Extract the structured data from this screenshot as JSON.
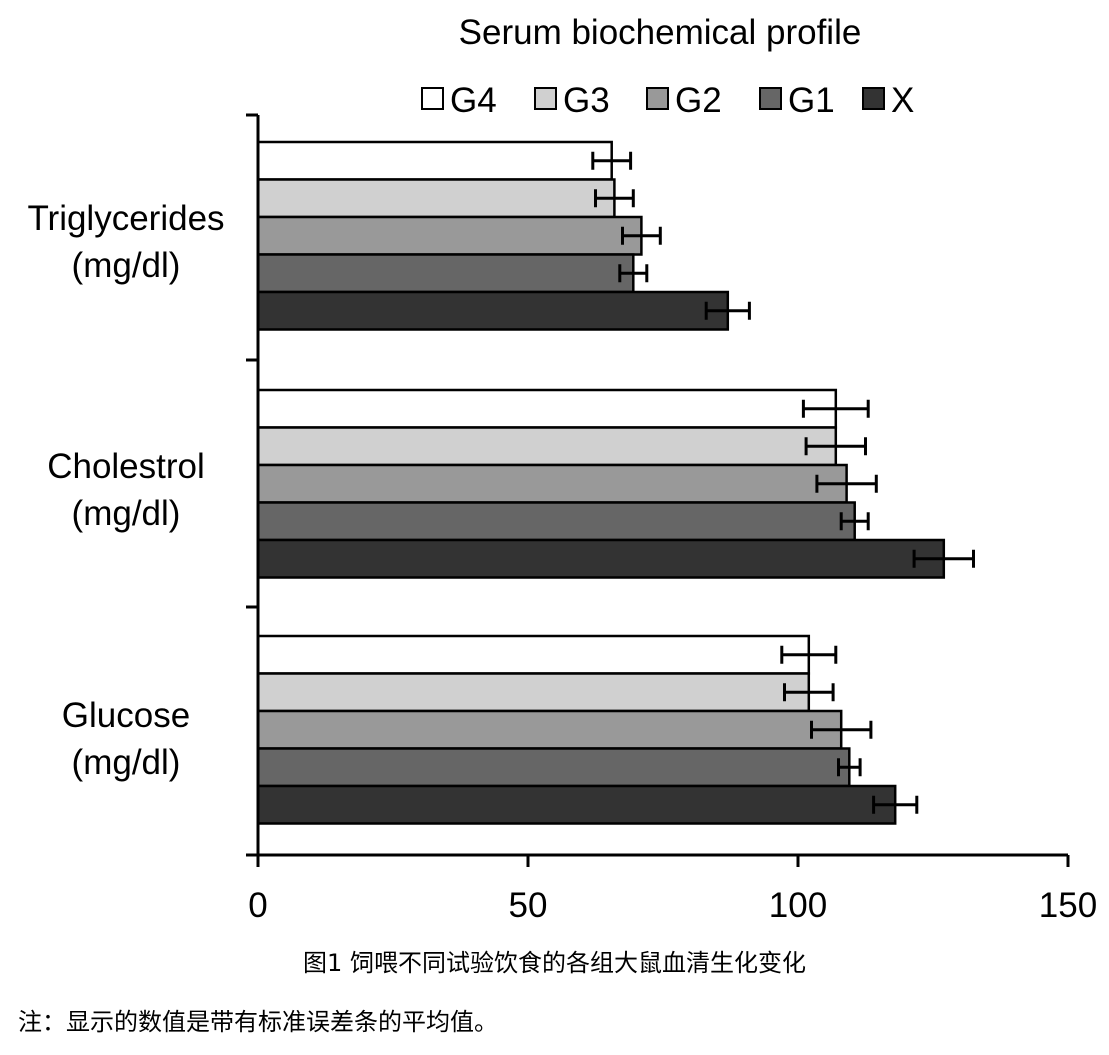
{
  "chart_data": {
    "type": "bar",
    "orientation": "horizontal",
    "title": "Serum biochemical profile",
    "categories": [
      "Triglycerides\n(mg/dl)",
      "Cholestrol\n(mg/dl)",
      "Glucose\n(mg/dl)"
    ],
    "series": [
      {
        "name": "G4",
        "color": "#ffffff",
        "values": [
          65.5,
          107,
          102
        ],
        "errors": [
          3.5,
          6,
          5
        ]
      },
      {
        "name": "G3",
        "color": "#d0d0d0",
        "values": [
          66,
          107,
          102
        ],
        "errors": [
          3.5,
          5.5,
          4.5
        ]
      },
      {
        "name": "G2",
        "color": "#999999",
        "values": [
          71,
          109,
          108
        ],
        "errors": [
          3.5,
          5.5,
          5.5
        ]
      },
      {
        "name": "G1",
        "color": "#666666",
        "values": [
          69.5,
          110.5,
          109.5
        ],
        "errors": [
          2.5,
          2.5,
          2
        ]
      },
      {
        "name": "X",
        "color": "#333333",
        "values": [
          87,
          127,
          118
        ],
        "errors": [
          4,
          5.5,
          4
        ]
      }
    ],
    "legend_order": [
      "G4",
      "G3",
      "G2",
      "G1",
      "X"
    ],
    "xlim": [
      0,
      150
    ],
    "xticks": [
      0,
      50,
      100,
      150
    ],
    "xlabel": "",
    "ylabel": "",
    "legend_position": "top",
    "grid": false
  },
  "caption": "图1 饲喂不同试验饮食的各组大鼠血清生化变化",
  "note": "注：显示的数值是带有标准误差条的平均值。"
}
